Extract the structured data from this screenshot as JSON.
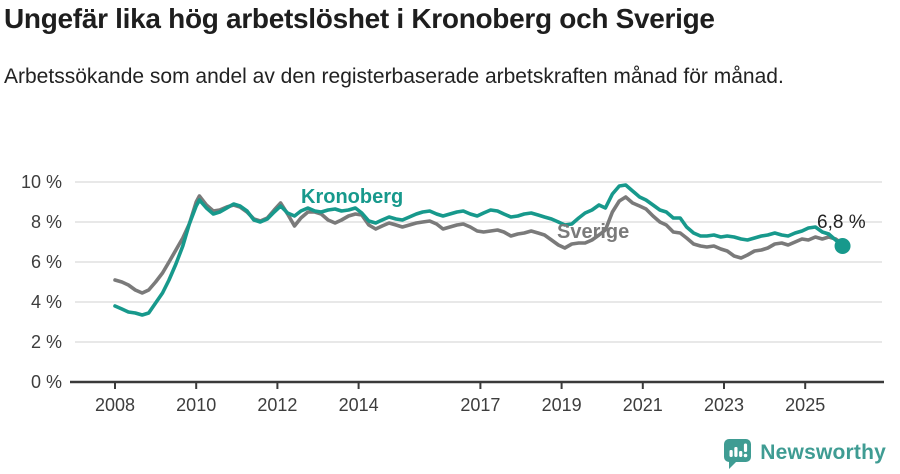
{
  "header": {
    "title": "Ungefär lika hög arbetslöshet i Kronoberg och Sverige",
    "subtitle": "Arbetssökande som andel av den registerbaserade arbetskraften månad för månad."
  },
  "colors": {
    "kronoberg": "#17998C",
    "sverige": "#7a7a7a",
    "gridline": "#d9d9d9",
    "axis": "#3a3a3a",
    "tick_label": "#3d3d3d",
    "end_label_text": "#232323",
    "brand": "#3f9c93"
  },
  "chart_data": {
    "type": "line",
    "title": "Ungefär lika hög arbetslöshet i Kronoberg och Sverige",
    "subtitle": "Arbetssökande som andel av den registerbaserade arbetskraften månad för månad.",
    "unit": "%",
    "grid": true,
    "x_axis": {
      "range": [
        2007.9,
        2026.3
      ],
      "ticks": [
        {
          "v": 2008,
          "label": "2008"
        },
        {
          "v": 2010,
          "label": "2010"
        },
        {
          "v": 2012,
          "label": "2012"
        },
        {
          "v": 2014,
          "label": "2014"
        },
        {
          "v": 2017,
          "label": "2017"
        },
        {
          "v": 2019,
          "label": "2019"
        },
        {
          "v": 2021,
          "label": "2021"
        },
        {
          "v": 2023,
          "label": "2023"
        },
        {
          "v": 2025,
          "label": "2025"
        }
      ]
    },
    "y_axis": {
      "range": [
        0,
        10
      ],
      "ticks": [
        {
          "v": 0,
          "label": "0 %"
        },
        {
          "v": 2,
          "label": "2 %"
        },
        {
          "v": 4,
          "label": "4 %"
        },
        {
          "v": 6,
          "label": "6 %"
        },
        {
          "v": 8,
          "label": "8 %"
        },
        {
          "v": 10,
          "label": "10 %"
        }
      ]
    },
    "end_label": "6,8 %",
    "end_value": 6.8,
    "series": [
      {
        "name": "Sverige",
        "color": "#7a7a7a",
        "points": [
          [
            2008.0,
            5.1
          ],
          [
            2008.17,
            5.0
          ],
          [
            2008.33,
            4.85
          ],
          [
            2008.5,
            4.6
          ],
          [
            2008.67,
            4.45
          ],
          [
            2008.83,
            4.6
          ],
          [
            2009.0,
            5.0
          ],
          [
            2009.17,
            5.45
          ],
          [
            2009.33,
            6.0
          ],
          [
            2009.5,
            6.6
          ],
          [
            2009.67,
            7.2
          ],
          [
            2009.83,
            7.9
          ],
          [
            2010.0,
            9.0
          ],
          [
            2010.08,
            9.3
          ],
          [
            2010.25,
            8.85
          ],
          [
            2010.42,
            8.55
          ],
          [
            2010.58,
            8.6
          ],
          [
            2010.75,
            8.75
          ],
          [
            2010.92,
            8.85
          ],
          [
            2011.08,
            8.75
          ],
          [
            2011.25,
            8.5
          ],
          [
            2011.42,
            8.15
          ],
          [
            2011.58,
            8.05
          ],
          [
            2011.75,
            8.2
          ],
          [
            2011.92,
            8.6
          ],
          [
            2012.08,
            8.95
          ],
          [
            2012.25,
            8.4
          ],
          [
            2012.42,
            7.8
          ],
          [
            2012.58,
            8.2
          ],
          [
            2012.75,
            8.5
          ],
          [
            2012.92,
            8.5
          ],
          [
            2013.08,
            8.4
          ],
          [
            2013.25,
            8.1
          ],
          [
            2013.42,
            7.95
          ],
          [
            2013.58,
            8.1
          ],
          [
            2013.75,
            8.3
          ],
          [
            2013.92,
            8.4
          ],
          [
            2014.08,
            8.35
          ],
          [
            2014.25,
            7.85
          ],
          [
            2014.42,
            7.65
          ],
          [
            2014.58,
            7.8
          ],
          [
            2014.75,
            7.95
          ],
          [
            2014.92,
            7.85
          ],
          [
            2015.08,
            7.75
          ],
          [
            2015.25,
            7.85
          ],
          [
            2015.42,
            7.95
          ],
          [
            2015.58,
            8.0
          ],
          [
            2015.75,
            8.05
          ],
          [
            2015.92,
            7.9
          ],
          [
            2016.08,
            7.65
          ],
          [
            2016.25,
            7.75
          ],
          [
            2016.42,
            7.85
          ],
          [
            2016.58,
            7.9
          ],
          [
            2016.75,
            7.75
          ],
          [
            2016.92,
            7.55
          ],
          [
            2017.08,
            7.5
          ],
          [
            2017.25,
            7.55
          ],
          [
            2017.42,
            7.6
          ],
          [
            2017.58,
            7.5
          ],
          [
            2017.75,
            7.3
          ],
          [
            2017.92,
            7.4
          ],
          [
            2018.08,
            7.45
          ],
          [
            2018.25,
            7.55
          ],
          [
            2018.42,
            7.45
          ],
          [
            2018.58,
            7.35
          ],
          [
            2018.75,
            7.1
          ],
          [
            2018.92,
            6.85
          ],
          [
            2019.08,
            6.7
          ],
          [
            2019.25,
            6.9
          ],
          [
            2019.42,
            6.95
          ],
          [
            2019.58,
            6.95
          ],
          [
            2019.75,
            7.1
          ],
          [
            2019.92,
            7.35
          ],
          [
            2020.08,
            7.6
          ],
          [
            2020.25,
            8.5
          ],
          [
            2020.42,
            9.05
          ],
          [
            2020.58,
            9.25
          ],
          [
            2020.75,
            8.95
          ],
          [
            2020.92,
            8.8
          ],
          [
            2021.08,
            8.65
          ],
          [
            2021.25,
            8.3
          ],
          [
            2021.42,
            8.0
          ],
          [
            2021.58,
            7.85
          ],
          [
            2021.75,
            7.5
          ],
          [
            2021.92,
            7.45
          ],
          [
            2022.08,
            7.2
          ],
          [
            2022.25,
            6.9
          ],
          [
            2022.42,
            6.8
          ],
          [
            2022.58,
            6.75
          ],
          [
            2022.75,
            6.8
          ],
          [
            2022.92,
            6.65
          ],
          [
            2023.08,
            6.55
          ],
          [
            2023.25,
            6.3
          ],
          [
            2023.42,
            6.2
          ],
          [
            2023.58,
            6.35
          ],
          [
            2023.75,
            6.55
          ],
          [
            2023.92,
            6.6
          ],
          [
            2024.08,
            6.7
          ],
          [
            2024.25,
            6.9
          ],
          [
            2024.42,
            6.95
          ],
          [
            2024.58,
            6.85
          ],
          [
            2024.75,
            7.0
          ],
          [
            2024.92,
            7.15
          ],
          [
            2025.08,
            7.1
          ],
          [
            2025.25,
            7.25
          ],
          [
            2025.42,
            7.15
          ],
          [
            2025.58,
            7.25
          ],
          [
            2025.75,
            7.15
          ],
          [
            2025.92,
            6.9
          ]
        ]
      },
      {
        "name": "Kronoberg",
        "color": "#17998C",
        "points": [
          [
            2008.0,
            3.8
          ],
          [
            2008.17,
            3.65
          ],
          [
            2008.33,
            3.5
          ],
          [
            2008.5,
            3.45
          ],
          [
            2008.67,
            3.35
          ],
          [
            2008.83,
            3.45
          ],
          [
            2009.0,
            3.95
          ],
          [
            2009.17,
            4.45
          ],
          [
            2009.33,
            5.1
          ],
          [
            2009.5,
            5.9
          ],
          [
            2009.67,
            6.8
          ],
          [
            2009.83,
            7.9
          ],
          [
            2010.0,
            8.8
          ],
          [
            2010.08,
            9.1
          ],
          [
            2010.25,
            8.7
          ],
          [
            2010.42,
            8.4
          ],
          [
            2010.58,
            8.5
          ],
          [
            2010.75,
            8.7
          ],
          [
            2010.92,
            8.9
          ],
          [
            2011.08,
            8.8
          ],
          [
            2011.25,
            8.55
          ],
          [
            2011.42,
            8.1
          ],
          [
            2011.58,
            8.0
          ],
          [
            2011.75,
            8.15
          ],
          [
            2011.92,
            8.5
          ],
          [
            2012.08,
            8.8
          ],
          [
            2012.25,
            8.45
          ],
          [
            2012.42,
            8.3
          ],
          [
            2012.58,
            8.55
          ],
          [
            2012.75,
            8.7
          ],
          [
            2012.92,
            8.55
          ],
          [
            2013.08,
            8.5
          ],
          [
            2013.25,
            8.6
          ],
          [
            2013.42,
            8.65
          ],
          [
            2013.58,
            8.55
          ],
          [
            2013.75,
            8.6
          ],
          [
            2013.92,
            8.7
          ],
          [
            2014.08,
            8.45
          ],
          [
            2014.25,
            8.05
          ],
          [
            2014.42,
            7.95
          ],
          [
            2014.58,
            8.1
          ],
          [
            2014.75,
            8.25
          ],
          [
            2014.92,
            8.15
          ],
          [
            2015.08,
            8.1
          ],
          [
            2015.25,
            8.25
          ],
          [
            2015.42,
            8.4
          ],
          [
            2015.58,
            8.5
          ],
          [
            2015.75,
            8.55
          ],
          [
            2015.92,
            8.4
          ],
          [
            2016.08,
            8.3
          ],
          [
            2016.25,
            8.4
          ],
          [
            2016.42,
            8.5
          ],
          [
            2016.58,
            8.55
          ],
          [
            2016.75,
            8.4
          ],
          [
            2016.92,
            8.3
          ],
          [
            2017.08,
            8.45
          ],
          [
            2017.25,
            8.6
          ],
          [
            2017.42,
            8.55
          ],
          [
            2017.58,
            8.4
          ],
          [
            2017.75,
            8.25
          ],
          [
            2017.92,
            8.3
          ],
          [
            2018.08,
            8.4
          ],
          [
            2018.25,
            8.45
          ],
          [
            2018.42,
            8.35
          ],
          [
            2018.58,
            8.25
          ],
          [
            2018.75,
            8.15
          ],
          [
            2018.92,
            8.0
          ],
          [
            2019.08,
            7.85
          ],
          [
            2019.25,
            7.9
          ],
          [
            2019.42,
            8.2
          ],
          [
            2019.58,
            8.45
          ],
          [
            2019.75,
            8.6
          ],
          [
            2019.92,
            8.85
          ],
          [
            2020.08,
            8.7
          ],
          [
            2020.25,
            9.4
          ],
          [
            2020.42,
            9.8
          ],
          [
            2020.58,
            9.85
          ],
          [
            2020.75,
            9.55
          ],
          [
            2020.92,
            9.25
          ],
          [
            2021.08,
            9.1
          ],
          [
            2021.25,
            8.85
          ],
          [
            2021.42,
            8.6
          ],
          [
            2021.58,
            8.5
          ],
          [
            2021.75,
            8.2
          ],
          [
            2021.92,
            8.2
          ],
          [
            2022.08,
            7.75
          ],
          [
            2022.25,
            7.45
          ],
          [
            2022.42,
            7.3
          ],
          [
            2022.58,
            7.3
          ],
          [
            2022.75,
            7.35
          ],
          [
            2022.92,
            7.25
          ],
          [
            2023.08,
            7.3
          ],
          [
            2023.25,
            7.25
          ],
          [
            2023.42,
            7.15
          ],
          [
            2023.58,
            7.1
          ],
          [
            2023.75,
            7.2
          ],
          [
            2023.92,
            7.3
          ],
          [
            2024.08,
            7.35
          ],
          [
            2024.25,
            7.45
          ],
          [
            2024.42,
            7.35
          ],
          [
            2024.58,
            7.3
          ],
          [
            2024.75,
            7.45
          ],
          [
            2024.92,
            7.55
          ],
          [
            2025.08,
            7.7
          ],
          [
            2025.25,
            7.75
          ],
          [
            2025.42,
            7.5
          ],
          [
            2025.58,
            7.4
          ],
          [
            2025.75,
            7.1
          ],
          [
            2025.92,
            6.8
          ]
        ]
      }
    ],
    "legend_position": "inline-labels"
  },
  "footer": {
    "brand": "Newsworthy"
  }
}
